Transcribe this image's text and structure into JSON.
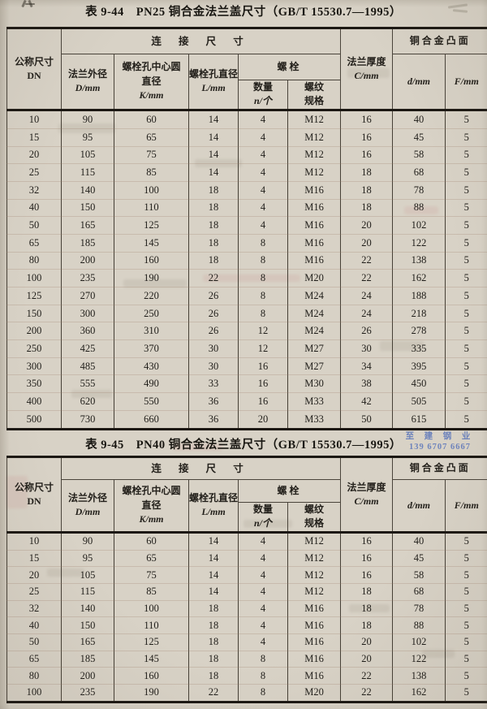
{
  "header": {
    "dn_label": "公称尺寸",
    "dn_sym": "DN",
    "connect": "连 接 尺 寸",
    "flange_od_label": "法兰外径",
    "flange_od_sym": "D/mm",
    "bolt_circle_label1": "螺栓孔中心圆",
    "bolt_circle_label2": "直径",
    "bolt_circle_sym": "K/mm",
    "bolt_hole_label": "螺栓孔直径",
    "bolt_hole_sym": "L/mm",
    "bolt_group": "螺栓",
    "qty_label": "数量",
    "qty_sym": "n/个",
    "thread_label1": "螺纹",
    "thread_label2": "规格",
    "thickness_label": "法兰厚度",
    "thickness_sym": "C/mm",
    "face_group": "铜合金凸面",
    "face_d_sym": "d/mm",
    "face_f_sym": "F/mm"
  },
  "tables": [
    {
      "title": "表 9-44　PN25 铜合金法兰盖尺寸（GB/T 15530.7—1995）",
      "rows": [
        [
          "10",
          "90",
          "60",
          "14",
          "4",
          "M12",
          "16",
          "40",
          "5"
        ],
        [
          "15",
          "95",
          "65",
          "14",
          "4",
          "M12",
          "16",
          "45",
          "5"
        ],
        [
          "20",
          "105",
          "75",
          "14",
          "4",
          "M12",
          "16",
          "58",
          "5"
        ],
        [
          "25",
          "115",
          "85",
          "14",
          "4",
          "M12",
          "18",
          "68",
          "5"
        ],
        [
          "32",
          "140",
          "100",
          "18",
          "4",
          "M16",
          "18",
          "78",
          "5"
        ],
        [
          "40",
          "150",
          "110",
          "18",
          "4",
          "M16",
          "18",
          "88",
          "5"
        ],
        [
          "50",
          "165",
          "125",
          "18",
          "4",
          "M16",
          "20",
          "102",
          "5"
        ],
        [
          "65",
          "185",
          "145",
          "18",
          "8",
          "M16",
          "20",
          "122",
          "5"
        ],
        [
          "80",
          "200",
          "160",
          "18",
          "8",
          "M16",
          "22",
          "138",
          "5"
        ],
        [
          "100",
          "235",
          "190",
          "22",
          "8",
          "M20",
          "22",
          "162",
          "5"
        ],
        [
          "125",
          "270",
          "220",
          "26",
          "8",
          "M24",
          "24",
          "188",
          "5"
        ],
        [
          "150",
          "300",
          "250",
          "26",
          "8",
          "M24",
          "24",
          "218",
          "5"
        ],
        [
          "200",
          "360",
          "310",
          "26",
          "12",
          "M24",
          "26",
          "278",
          "5"
        ],
        [
          "250",
          "425",
          "370",
          "30",
          "12",
          "M27",
          "30",
          "335",
          "5"
        ],
        [
          "300",
          "485",
          "430",
          "30",
          "16",
          "M27",
          "34",
          "395",
          "5"
        ],
        [
          "350",
          "555",
          "490",
          "33",
          "16",
          "M30",
          "38",
          "450",
          "5"
        ],
        [
          "400",
          "620",
          "550",
          "36",
          "16",
          "M33",
          "42",
          "505",
          "5"
        ],
        [
          "500",
          "730",
          "660",
          "36",
          "20",
          "M33",
          "50",
          "615",
          "5"
        ]
      ]
    },
    {
      "title": "表 9-45　PN40 铜合金法兰盖尺寸（GB/T 15530.7—1995）",
      "rows": [
        [
          "10",
          "90",
          "60",
          "14",
          "4",
          "M12",
          "16",
          "40",
          "5"
        ],
        [
          "15",
          "95",
          "65",
          "14",
          "4",
          "M12",
          "16",
          "45",
          "5"
        ],
        [
          "20",
          "105",
          "75",
          "14",
          "4",
          "M12",
          "16",
          "58",
          "5"
        ],
        [
          "25",
          "115",
          "85",
          "14",
          "4",
          "M12",
          "18",
          "68",
          "5"
        ],
        [
          "32",
          "140",
          "100",
          "18",
          "4",
          "M16",
          "18",
          "78",
          "5"
        ],
        [
          "40",
          "150",
          "110",
          "18",
          "4",
          "M16",
          "18",
          "88",
          "5"
        ],
        [
          "50",
          "165",
          "125",
          "18",
          "4",
          "M16",
          "20",
          "102",
          "5"
        ],
        [
          "65",
          "185",
          "145",
          "18",
          "8",
          "M16",
          "20",
          "122",
          "5"
        ],
        [
          "80",
          "200",
          "160",
          "18",
          "8",
          "M16",
          "22",
          "138",
          "5"
        ],
        [
          "100",
          "235",
          "190",
          "22",
          "8",
          "M20",
          "22",
          "162",
          "5"
        ]
      ]
    }
  ],
  "watermark": {
    "line1": "至 建 钢 业",
    "line2": "139 6707 6667",
    "color": "#5b76bb"
  }
}
